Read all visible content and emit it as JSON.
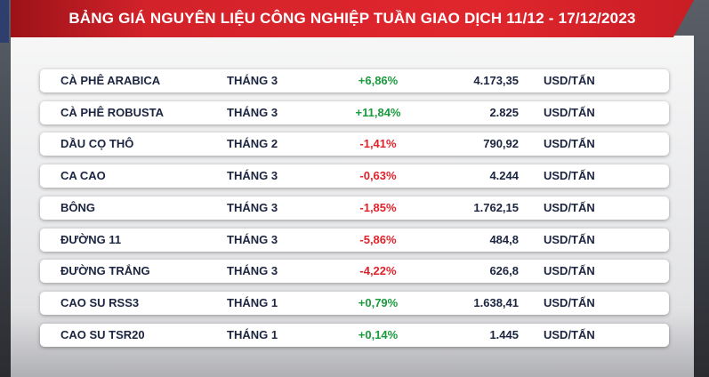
{
  "header": {
    "title": "BẢNG GIÁ NGUYÊN LIỆU CÔNG NGHIỆP TUẦN GIAO DỊCH 11/12 - 17/12/2023"
  },
  "table": {
    "rows": [
      [
        "CÀ PHÊ ARABICA",
        "THÁNG 3",
        "+6,86%",
        "4.173,35",
        "USD/TẤN"
      ],
      [
        "CÀ PHÊ ROBUSTA",
        "THÁNG 3",
        "+11,84%",
        "2.825",
        "USD/TẤN"
      ],
      [
        "DẦU CỌ THÔ",
        "THÁNG 2",
        "-1,41%",
        "790,92",
        "USD/TẤN"
      ],
      [
        "CA CAO",
        "THÁNG 3",
        "-0,63%",
        "4.244",
        "USD/TẤN"
      ],
      [
        "BÔNG",
        "THÁNG 3",
        "-1,85%",
        "1.762,15",
        "USD/TẤN"
      ],
      [
        "ĐƯỜNG 11",
        "THÁNG 3",
        "-5,86%",
        "484,8",
        "USD/TẤN"
      ],
      [
        "ĐƯỜNG TRẮNG",
        "THÁNG 3",
        "-4,22%",
        "626,8",
        "USD/TẤN"
      ],
      [
        "CAO SU RSS3",
        "THÁNG 1",
        "+0,79%",
        "1.638,41",
        "USD/TẤN"
      ],
      [
        "CAO SU TSR20",
        "THÁNG 1",
        "+0,14%",
        "1.445",
        "USD/TẤN"
      ]
    ]
  }
}
